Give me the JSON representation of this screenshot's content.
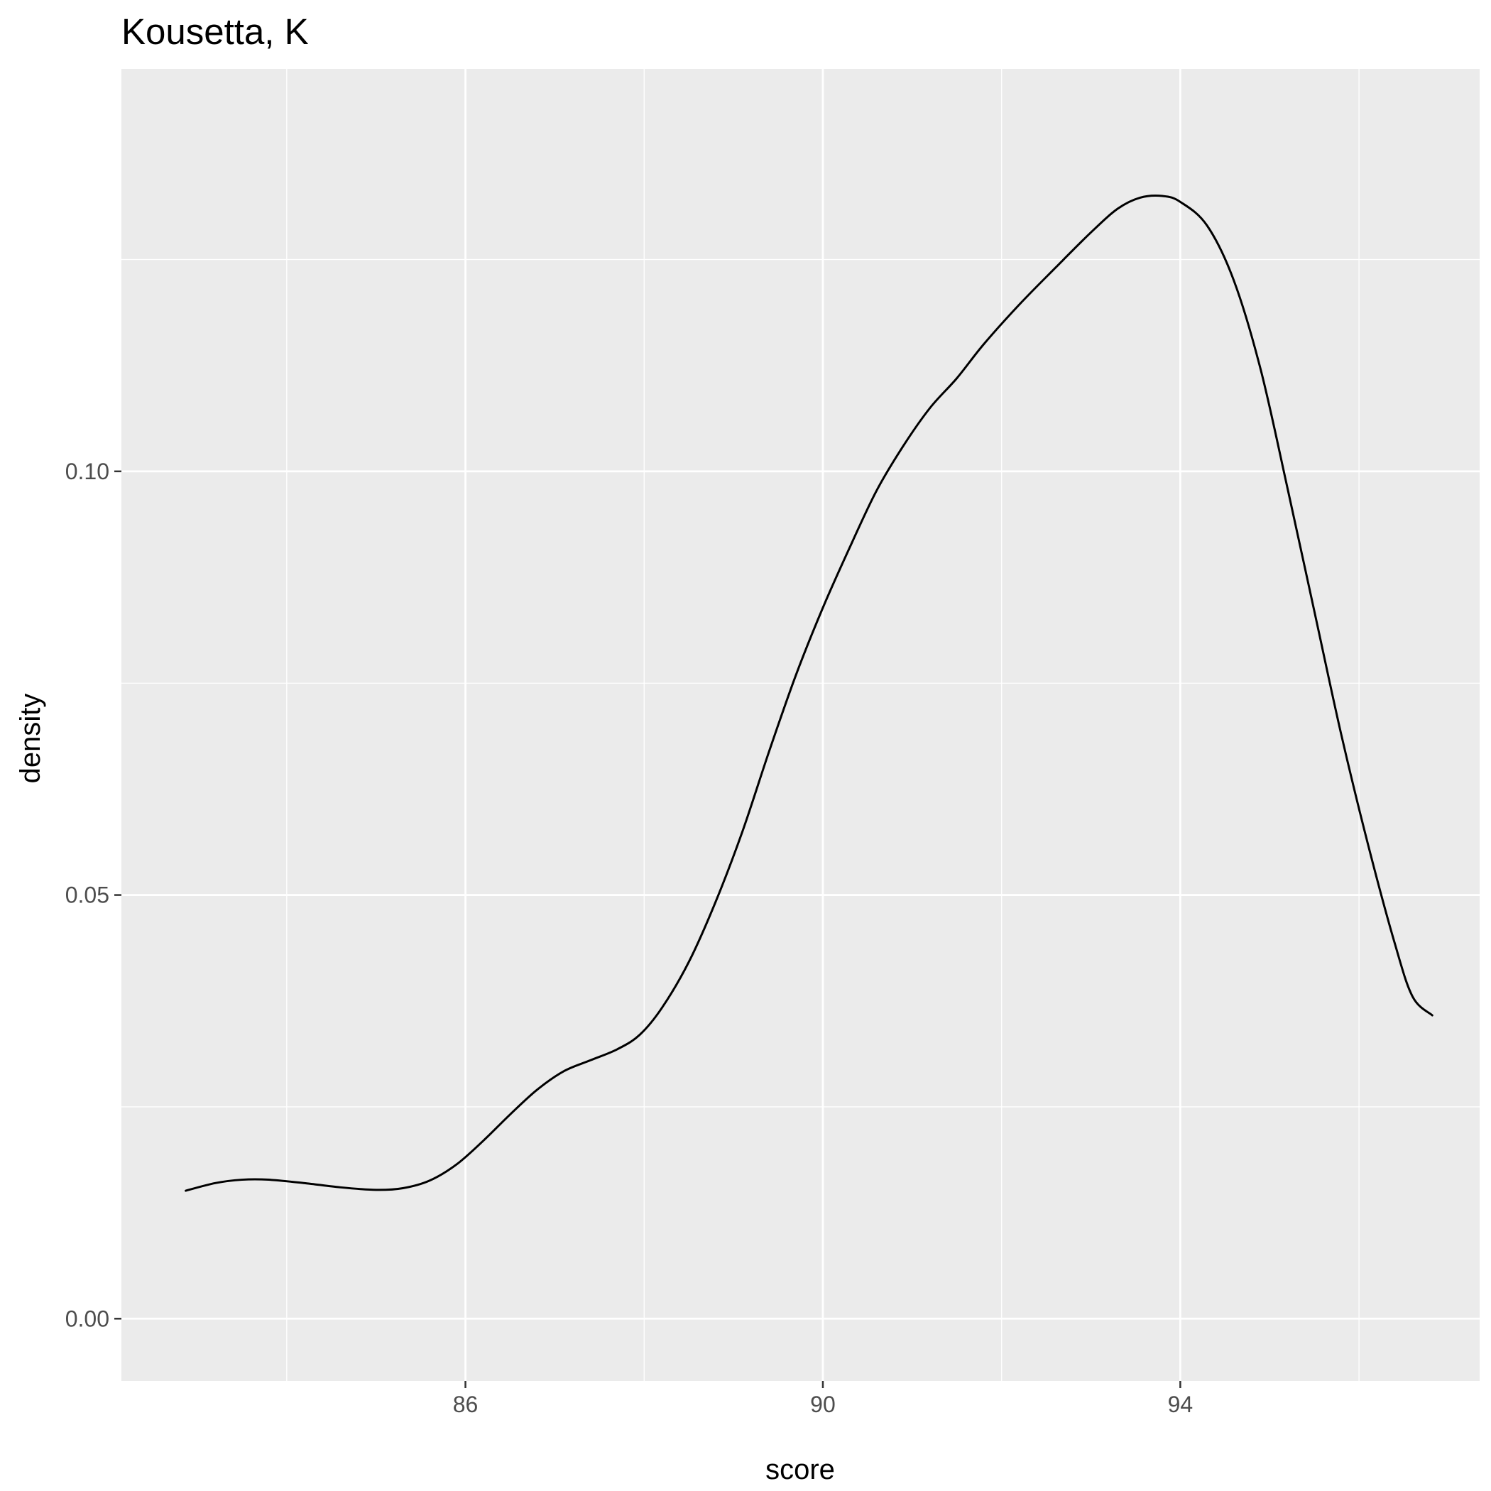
{
  "chart_data": {
    "type": "line",
    "subtype": "density",
    "title": "Kousetta, K",
    "xlabel": "score",
    "ylabel": "density",
    "xlim": [
      82.15,
      97.35
    ],
    "ylim": [
      -0.00735,
      0.1475
    ],
    "x_ticks": [
      {
        "value": 86,
        "label": "86"
      },
      {
        "value": 90,
        "label": "90"
      },
      {
        "value": 94,
        "label": "94"
      }
    ],
    "x_minor_ticks": [
      84,
      88,
      92,
      96
    ],
    "y_ticks": [
      {
        "value": 0.0,
        "label": "0.00"
      },
      {
        "value": 0.05,
        "label": "0.05"
      },
      {
        "value": 0.1,
        "label": "0.10"
      }
    ],
    "y_minor_ticks": [
      0.025,
      0.075,
      0.125
    ],
    "grid": true,
    "colors": {
      "panel_background": "#EBEBEB",
      "grid_line": "#FFFFFF",
      "curve": "#000000",
      "tick_label": "#4D4D4D",
      "tick_mark": "#333333"
    },
    "series": [
      {
        "name": "density",
        "points": [
          [
            82.87,
            0.0151
          ],
          [
            83.2,
            0.016
          ],
          [
            83.5,
            0.0164
          ],
          [
            83.8,
            0.0164
          ],
          [
            84.2,
            0.016
          ],
          [
            84.6,
            0.0155
          ],
          [
            85.0,
            0.0152
          ],
          [
            85.3,
            0.0154
          ],
          [
            85.6,
            0.0163
          ],
          [
            85.9,
            0.0182
          ],
          [
            86.2,
            0.021
          ],
          [
            86.5,
            0.0241
          ],
          [
            86.8,
            0.027
          ],
          [
            87.1,
            0.0292
          ],
          [
            87.4,
            0.0305
          ],
          [
            87.7,
            0.0318
          ],
          [
            87.95,
            0.0335
          ],
          [
            88.2,
            0.0367
          ],
          [
            88.5,
            0.0421
          ],
          [
            88.8,
            0.0492
          ],
          [
            89.1,
            0.0575
          ],
          [
            89.4,
            0.067
          ],
          [
            89.7,
            0.076
          ],
          [
            90.0,
            0.0839
          ],
          [
            90.3,
            0.091
          ],
          [
            90.6,
            0.0977
          ],
          [
            90.9,
            0.103
          ],
          [
            91.2,
            0.1075
          ],
          [
            91.5,
            0.111
          ],
          [
            91.8,
            0.115
          ],
          [
            92.2,
            0.1197
          ],
          [
            92.6,
            0.124
          ],
          [
            93.0,
            0.1282
          ],
          [
            93.3,
            0.131
          ],
          [
            93.55,
            0.1323
          ],
          [
            93.8,
            0.1325
          ],
          [
            94.0,
            0.1318
          ],
          [
            94.3,
            0.129
          ],
          [
            94.6,
            0.1225
          ],
          [
            94.9,
            0.112
          ],
          [
            95.2,
            0.098
          ],
          [
            95.5,
            0.0835
          ],
          [
            95.8,
            0.069
          ],
          [
            96.1,
            0.056
          ],
          [
            96.4,
            0.0443
          ],
          [
            96.6,
            0.038
          ],
          [
            96.82,
            0.0358
          ]
        ]
      }
    ]
  }
}
